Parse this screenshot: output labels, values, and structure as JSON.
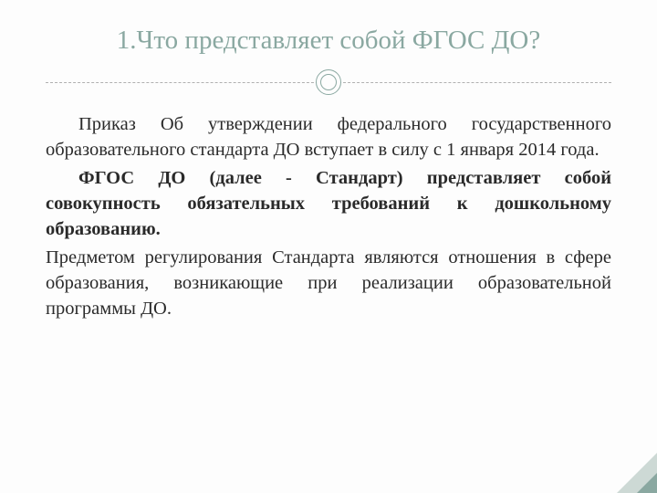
{
  "title": "1.Что представляет собой ФГОС ДО?",
  "paragraphs": {
    "p1": "Приказ Об утверждении федерального государственного образовательного стандарта ДО вступает в силу с 1 января 2014 года.",
    "p2": "ФГОС ДО (далее - Стандарт) представляет собой совокупность обязательных требований к дошкольному образованию.",
    "p3": "Предметом регулирования Стандарта являются отношения в сфере образования, возникающие при реализации образовательной программы ДО."
  },
  "colors": {
    "title": "#8aa8a1",
    "text": "#2a2a2a",
    "divider": "#8aa8a1",
    "background": "#fdfdfd",
    "accent_light": "#cdd9d5",
    "accent_dark": "#8aa8a1"
  },
  "typography": {
    "title_fontsize": 29,
    "body_fontsize": 20.5,
    "font_family": "Georgia, serif"
  }
}
